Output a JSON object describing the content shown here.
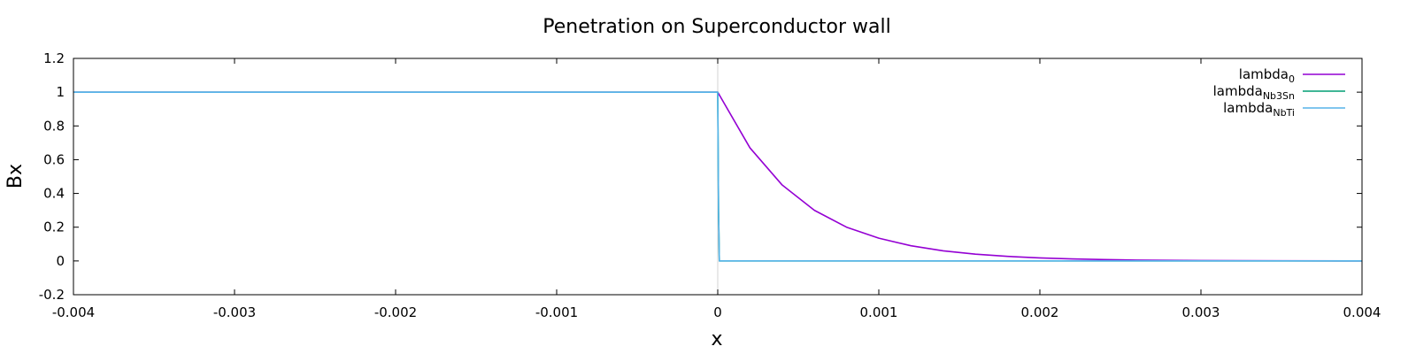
{
  "chart_data": {
    "type": "line",
    "title": "Penetration on Superconductor wall",
    "xlabel": "x",
    "ylabel": "Bx",
    "xlim": [
      -0.004,
      0.004
    ],
    "ylim": [
      -0.2,
      1.2
    ],
    "xticks": [
      -0.004,
      -0.003,
      -0.002,
      -0.001,
      0,
      0.001,
      0.002,
      0.003,
      0.004
    ],
    "xtick_labels": [
      "-0.004",
      "-0.003",
      "-0.002",
      "-0.001",
      "0",
      "0.001",
      "0.002",
      "0.003",
      "0.004"
    ],
    "yticks": [
      -0.2,
      0,
      0.2,
      0.4,
      0.6,
      0.8,
      1,
      1.2
    ],
    "ytick_labels": [
      "-0.2",
      "0",
      "0.2",
      "0.4",
      "0.6",
      "0.8",
      "1",
      "1.2"
    ],
    "grid": false,
    "legend_position": "top-right",
    "vertical_reference_line": {
      "x": 0,
      "color": "#d3d3d3"
    },
    "series": [
      {
        "name": "lambda_0",
        "legend_base": "lambda",
        "legend_sub": "0",
        "color": "#9400d3",
        "x": [
          -0.004,
          0,
          0.0002,
          0.0004,
          0.0006,
          0.0008,
          0.001,
          0.0012,
          0.0014,
          0.0016,
          0.0018,
          0.002,
          0.0022,
          0.0024,
          0.0026,
          0.003,
          0.0035,
          0.004
        ],
        "y": [
          1,
          1,
          0.67,
          0.45,
          0.3,
          0.2,
          0.135,
          0.09,
          0.06,
          0.04,
          0.027,
          0.018,
          0.012,
          0.008,
          0.005,
          0.002,
          0.001,
          0
        ]
      },
      {
        "name": "lambda_Nb3Sn",
        "legend_base": "lambda",
        "legend_sub": "Nb3Sn",
        "color": "#009e73",
        "x": [
          -0.004,
          0,
          5e-06,
          1e-05,
          0.004
        ],
        "y": [
          1,
          1,
          0.3,
          0,
          0
        ]
      },
      {
        "name": "lambda_NbTi",
        "legend_base": "lambda",
        "legend_sub": "NbTi",
        "color": "#56b4e9",
        "x": [
          -0.004,
          0,
          5e-06,
          1e-05,
          0.004
        ],
        "y": [
          1,
          1,
          0.3,
          0,
          0
        ]
      }
    ]
  }
}
